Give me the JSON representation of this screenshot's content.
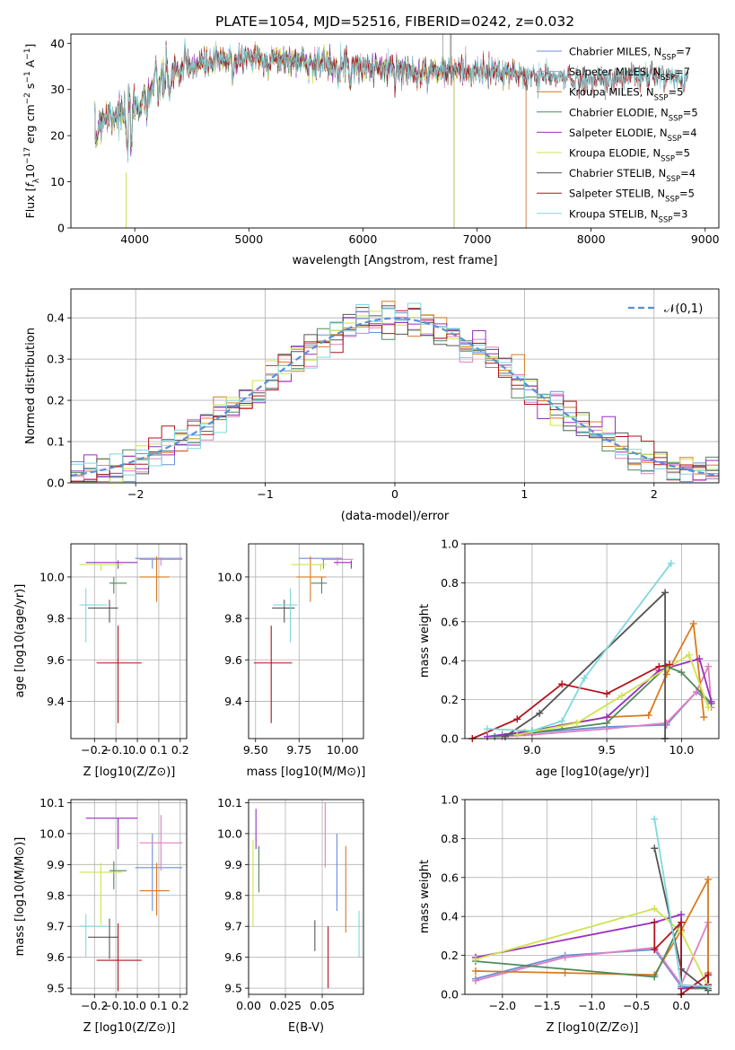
{
  "chart_data": [
    {
      "id": "spectrum",
      "type": "line",
      "title": "PLATE=1054, MJD=52516, FIBERID=0242, z=0.032",
      "xlabel": "wavelength [Angstrom, rest frame]",
      "ylabel": "Flux [f_λ 10^-17 erg cm^-2 s^-1 A^-1]",
      "xlim": [
        3440,
        9120
      ],
      "ylim": [
        0,
        42
      ],
      "xticks": [
        4000,
        5000,
        6000,
        7000,
        8000,
        9000
      ],
      "yticks": [
        0,
        10,
        20,
        30,
        40
      ],
      "legend_position": "upper right",
      "continuum": {
        "wavelength": [
          3650,
          3700,
          3800,
          3900,
          4000,
          4100,
          4300,
          4500,
          4700,
          5000,
          5500,
          6000,
          6500,
          7000,
          7500,
          8000,
          8500,
          8850
        ],
        "flux": [
          18,
          24,
          25,
          24,
          26,
          29,
          33,
          35,
          36,
          37,
          36,
          35,
          34,
          34,
          33,
          32,
          33,
          32
        ]
      },
      "series": [
        {
          "name": "Chabrier MILES",
          "nssp": "7",
          "color": "#6a8fd6",
          "end": 7430
        },
        {
          "name": "Salpeter MILES",
          "nssp": "7",
          "color": "#e07fc0",
          "end": 7430
        },
        {
          "name": "Kroupa MILES",
          "nssp": "5",
          "color": "#d97a1e",
          "end": 7430
        },
        {
          "name": "Chabrier ELODIE",
          "nssp": "5",
          "color": "#4f8a5c",
          "end": 6800
        },
        {
          "name": "Salpeter ELODIE",
          "nssp": "4",
          "color": "#9a2fc0",
          "end": 6800
        },
        {
          "name": "Kroupa ELODIE",
          "nssp": "5",
          "color": "#cfe34d",
          "end": 6800
        },
        {
          "name": "Chabrier STELIB",
          "nssp": "4",
          "color": "#555555",
          "end": 8850
        },
        {
          "name": "Salpeter STELIB",
          "nssp": "5",
          "color": "#b0141c",
          "end": 8850
        },
        {
          "name": "Kroupa STELIB",
          "nssp": "3",
          "color": "#7fd8dc",
          "end": 8850
        }
      ]
    },
    {
      "id": "residuals",
      "type": "histogram",
      "xlabel": "(data-model)/error",
      "ylabel": "Normed distribution",
      "xlim": [
        -2.5,
        2.5
      ],
      "ylim": [
        0,
        0.47
      ],
      "xticks": [
        -2,
        -1,
        0,
        1,
        2
      ],
      "xticklabels": [
        "−2",
        "−1",
        "0",
        "1",
        "2"
      ],
      "yticks": [
        0.0,
        0.1,
        0.2,
        0.3,
        0.4
      ],
      "bin_width": 0.1,
      "reference": {
        "name": "𝒩(0,1)",
        "mean": 0,
        "sigma": 1,
        "color": "#5b8fd6"
      }
    },
    {
      "id": "age-vs-Z",
      "type": "errorbar",
      "xlabel": "Z [log10(Z/Z⊙)]",
      "ylabel": "age  [log10(age/yr)]",
      "xlim": [
        -0.31,
        0.23
      ],
      "ylim": [
        9.22,
        10.16
      ],
      "xticks": [
        -0.2,
        -0.1,
        0.0,
        0.1,
        0.2
      ],
      "xticklabels": [
        "−0.2",
        "−0.1",
        "0.0",
        "0.1",
        "0.2"
      ],
      "yticks": [
        9.4,
        9.6,
        9.8,
        10.0
      ],
      "yticklabels": [
        "9.4",
        "9.6",
        "9.8",
        "10.0"
      ]
    },
    {
      "id": "age-vs-mass",
      "type": "errorbar",
      "xlabel": "mass [log10(M/M⊙)]",
      "ylabel": "",
      "xlim": [
        9.46,
        10.12
      ],
      "ylim": [
        9.22,
        10.16
      ],
      "xticks": [
        9.5,
        9.75,
        10.0
      ],
      "xticklabels": [
        "9.50",
        "9.75",
        "10.00"
      ],
      "yticks": [
        9.4,
        9.6,
        9.8,
        10.0
      ],
      "yticklabels": [
        "9.4",
        "9.6",
        "9.8",
        "10.0"
      ]
    },
    {
      "id": "mass-weight-vs-age",
      "type": "line",
      "xlabel": "age  [log10(age/yr)]",
      "ylabel": "mass weight",
      "xlim": [
        8.55,
        10.25
      ],
      "ylim": [
        0,
        1
      ],
      "xticks": [
        9.0,
        9.5,
        10.0
      ],
      "xticklabels": [
        "9.0",
        "9.5",
        "10.0"
      ],
      "yticks": [
        0.0,
        0.2,
        0.4,
        0.6,
        0.8,
        1.0
      ],
      "yticklabels": [
        "0.0",
        "0.2",
        "0.4",
        "0.6",
        "0.8",
        "1.0"
      ]
    },
    {
      "id": "mass-vs-Z",
      "type": "errorbar",
      "xlabel": "Z [log10(Z/Z⊙)]",
      "ylabel": "mass [log10(M/M⊙)]",
      "xlim": [
        -0.31,
        0.23
      ],
      "ylim": [
        9.48,
        10.11
      ],
      "xticks": [
        -0.2,
        -0.1,
        0.0,
        0.1,
        0.2
      ],
      "xticklabels": [
        "−0.2",
        "−0.1",
        "0.0",
        "0.1",
        "0.2"
      ],
      "yticks": [
        9.5,
        9.6,
        9.7,
        9.8,
        9.9,
        10.0,
        10.1
      ],
      "yticklabels": [
        "9.5",
        "9.6",
        "9.7",
        "9.8",
        "9.9",
        "10.0",
        "10.1"
      ]
    },
    {
      "id": "mass-vs-ebv",
      "type": "errorbar",
      "xlabel": "E(B-V)",
      "ylabel": "",
      "xlim": [
        0.0,
        0.078
      ],
      "ylim": [
        9.48,
        10.11
      ],
      "xticks": [
        0.0,
        0.025,
        0.05
      ],
      "xticklabels": [
        "0.00",
        "0.025",
        "0.05"
      ],
      "yticks": [
        9.5,
        9.6,
        9.7,
        9.8,
        9.9,
        10.0,
        10.1
      ],
      "yticklabels": [
        "9.5",
        "9.6",
        "9.7",
        "9.8",
        "9.9",
        "10.0",
        "10.1"
      ]
    },
    {
      "id": "mass-weight-vs-Z",
      "type": "line",
      "xlabel": "Z [log10(Z/Z⊙)]",
      "ylabel": "mass weight",
      "xlim": [
        -2.42,
        0.42
      ],
      "ylim": [
        0,
        1
      ],
      "xticks": [
        -2.0,
        -1.5,
        -1.0,
        -0.5,
        0.0
      ],
      "xticklabels": [
        "−2.0",
        "−1.5",
        "−1.0",
        "−0.5",
        "0.0"
      ],
      "yticks": [
        0.0,
        0.2,
        0.4,
        0.6,
        0.8,
        1.0
      ],
      "yticklabels": [
        "0.0",
        "0.2",
        "0.4",
        "0.6",
        "0.8",
        "1.0"
      ]
    }
  ],
  "fits": [
    {
      "Z": 0.07,
      "Zerr": [
        0.08,
        0.14
      ],
      "age": 10.09,
      "ageErr": [
        0.05,
        0.0
      ],
      "mass": 9.89,
      "massErr": [
        0.14,
        0.11
      ],
      "ebv": 0.06,
      "ebvErr": [
        9.75,
        10.0
      ]
    },
    {
      "Z": 0.11,
      "Zerr": [
        0.1,
        0.1
      ],
      "age": 10.085,
      "ageErr": [
        0.03,
        0.01
      ],
      "mass": 9.97,
      "massErr": [
        0.09,
        0.09
      ],
      "ebv": 0.052,
      "ebvErr": [
        9.89,
        10.1
      ]
    },
    {
      "Z": 0.09,
      "Zerr": [
        0.08,
        0.06
      ],
      "age": 10.0,
      "ageErr": [
        0.12,
        0.1
      ],
      "mass": 9.815,
      "massErr": [
        0.08,
        0.09
      ],
      "ebv": 0.066,
      "ebvErr": [
        9.68,
        9.96
      ]
    },
    {
      "Z": -0.11,
      "Zerr": [
        0.02,
        0.06
      ],
      "age": 9.97,
      "ageErr": [
        0.05,
        0.03
      ],
      "mass": 9.88,
      "massErr": [
        0.06,
        0.03
      ],
      "ebv": 0.007,
      "ebvErr": [
        9.81,
        9.96
      ]
    },
    {
      "Z": -0.09,
      "Zerr": [
        0.15,
        0.09
      ],
      "age": 10.07,
      "ageErr": [
        0.03,
        0.01
      ],
      "mass": 10.05,
      "massErr": [
        0.1,
        0.0
      ],
      "ebv": 0.005,
      "ebvErr": [
        9.95,
        10.08
      ]
    },
    {
      "Z": -0.17,
      "Zerr": [
        0.1,
        0.1
      ],
      "age": 10.06,
      "ageErr": [
        0.03,
        0.0
      ],
      "mass": 9.875,
      "massErr": [
        0.17,
        0.03
      ],
      "ebv": 0.003,
      "ebvErr": [
        9.7,
        9.98
      ]
    },
    {
      "Z": -0.13,
      "Zerr": [
        0.1,
        0.04
      ],
      "age": 9.85,
      "ageErr": [
        0.07,
        0.04
      ],
      "mass": 9.665,
      "massErr": [
        0.07,
        0.06
      ],
      "ebv": 0.045,
      "ebvErr": [
        9.62,
        9.72
      ]
    },
    {
      "Z": -0.09,
      "Zerr": [
        0.1,
        0.11
      ],
      "age": 9.585,
      "ageErr": [
        0.29,
        0.18
      ],
      "mass": 9.59,
      "massErr": [
        0.1,
        0.12
      ],
      "ebv": 0.054,
      "ebvErr": [
        9.5,
        9.7
      ]
    },
    {
      "Z": -0.24,
      "Zerr": [
        0.03,
        0.1
      ],
      "age": 9.865,
      "ageErr": [
        0.18,
        0.08
      ],
      "mass": 9.7,
      "massErr": [
        0.1,
        0.04
      ],
      "ebv": 0.075,
      "ebvErr": [
        9.6,
        9.75
      ]
    }
  ],
  "weights_age": [
    [
      [
        8.8,
        0.02
      ],
      [
        9.0,
        0.03
      ],
      [
        9.5,
        0.06
      ],
      [
        9.9,
        0.07
      ],
      [
        10.1,
        0.24
      ],
      [
        10.2,
        0.18
      ]
    ],
    [
      [
        8.8,
        0.01
      ],
      [
        9.0,
        0.02
      ],
      [
        9.5,
        0.05
      ],
      [
        9.9,
        0.08
      ],
      [
        10.1,
        0.24
      ],
      [
        10.18,
        0.37
      ],
      [
        10.2,
        0.16
      ]
    ],
    [
      [
        8.95,
        0.03
      ],
      [
        9.2,
        0.07
      ],
      [
        9.5,
        0.11
      ],
      [
        9.78,
        0.12
      ],
      [
        9.9,
        0.33
      ],
      [
        10.08,
        0.59
      ],
      [
        10.15,
        0.11
      ]
    ],
    [
      [
        8.75,
        0.01
      ],
      [
        9.0,
        0.03
      ],
      [
        9.5,
        0.08
      ],
      [
        9.9,
        0.37
      ],
      [
        10.0,
        0.34
      ],
      [
        10.2,
        0.18
      ]
    ],
    [
      [
        8.7,
        0.01
      ],
      [
        9.0,
        0.04
      ],
      [
        9.5,
        0.11
      ],
      [
        9.85,
        0.35
      ],
      [
        10.12,
        0.41
      ],
      [
        10.2,
        0.19
      ]
    ],
    [
      [
        8.9,
        0.02
      ],
      [
        9.3,
        0.08
      ],
      [
        9.6,
        0.22
      ],
      [
        10.05,
        0.43
      ],
      [
        10.18,
        0.16
      ]
    ],
    [
      [
        8.82,
        0.01
      ],
      [
        9.05,
        0.13
      ],
      [
        9.89,
        0.75
      ],
      [
        9.89,
        0.0
      ]
    ],
    [
      [
        8.6,
        0.0
      ],
      [
        8.9,
        0.1
      ],
      [
        9.2,
        0.28
      ],
      [
        9.5,
        0.23
      ],
      [
        9.85,
        0.37
      ],
      [
        9.92,
        0.38
      ]
    ],
    [
      [
        8.7,
        0.05
      ],
      [
        9.0,
        0.04
      ],
      [
        9.2,
        0.09
      ],
      [
        9.35,
        0.31
      ],
      [
        9.93,
        0.9
      ]
    ]
  ],
  "weights_Z": [
    [
      [
        -2.3,
        0.08
      ],
      [
        -1.3,
        0.2
      ],
      [
        -0.3,
        0.23
      ],
      [
        0.0,
        0.04
      ],
      [
        0.3,
        0.03
      ]
    ],
    [
      [
        -2.3,
        0.07
      ],
      [
        -1.3,
        0.19
      ],
      [
        -0.3,
        0.24
      ],
      [
        0.0,
        0.05
      ],
      [
        0.3,
        0.37
      ],
      [
        0.3,
        0.03
      ]
    ],
    [
      [
        -2.3,
        0.12
      ],
      [
        -1.3,
        0.11
      ],
      [
        -0.3,
        0.1
      ],
      [
        0.0,
        0.33
      ],
      [
        0.3,
        0.59
      ],
      [
        0.3,
        0.11
      ]
    ],
    [
      [
        -2.3,
        0.17
      ],
      [
        -0.3,
        0.09
      ],
      [
        0.0,
        0.37
      ],
      [
        0.0,
        0.03
      ],
      [
        0.3,
        0.03
      ]
    ],
    [
      [
        -2.3,
        0.19
      ],
      [
        -0.3,
        0.37
      ],
      [
        0.0,
        0.41
      ],
      [
        0.0,
        0.03
      ],
      [
        0.3,
        0.04
      ]
    ],
    [
      [
        -2.3,
        0.18
      ],
      [
        -0.3,
        0.44
      ],
      [
        0.0,
        0.32
      ],
      [
        0.3,
        0.04
      ]
    ],
    [
      [
        -0.3,
        0.75
      ],
      [
        0.0,
        0.13
      ],
      [
        0.3,
        0.02
      ]
    ],
    [
      [
        -0.3,
        0.37
      ],
      [
        -0.3,
        0.23
      ],
      [
        0.0,
        0.37
      ],
      [
        0.0,
        0.0
      ],
      [
        0.3,
        0.1
      ],
      [
        0.3,
        0.05
      ]
    ],
    [
      [
        -0.3,
        0.9
      ],
      [
        0.0,
        0.05
      ],
      [
        0.3,
        0.04
      ]
    ]
  ]
}
